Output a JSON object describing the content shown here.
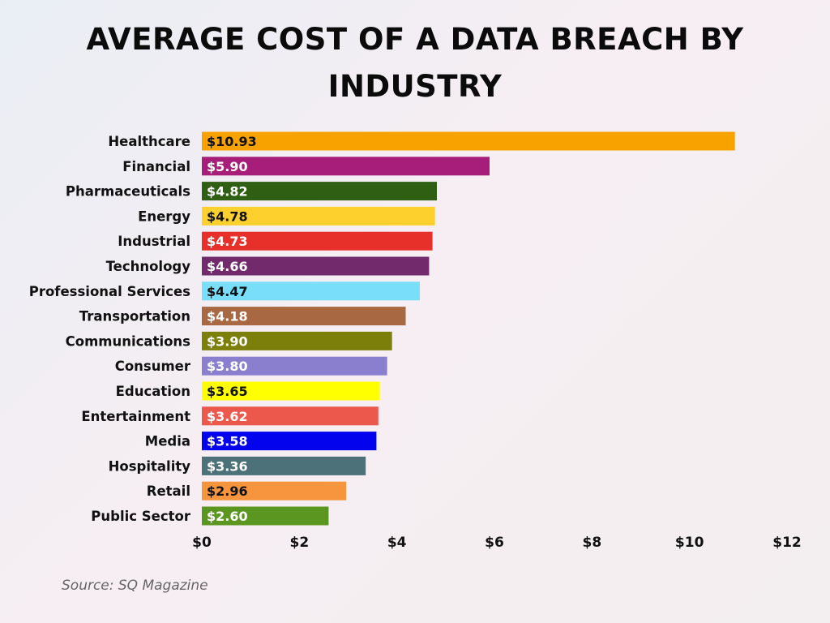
{
  "chart_data": {
    "type": "bar",
    "orientation": "horizontal",
    "title": "AVERAGE COST OF A DATA BREACH BY INDUSTRY",
    "categories": [
      "Healthcare",
      "Financial",
      "Pharmaceuticals",
      "Energy",
      "Industrial",
      "Technology",
      "Professional Services",
      "Transportation",
      "Communications",
      "Consumer",
      "Education",
      "Entertainment",
      "Media",
      "Hospitality",
      "Retail",
      "Public Sector"
    ],
    "values": [
      10.93,
      5.9,
      4.82,
      4.78,
      4.73,
      4.66,
      4.47,
      4.18,
      3.9,
      3.8,
      3.65,
      3.62,
      3.58,
      3.36,
      2.96,
      2.6
    ],
    "value_labels": [
      "$10.93",
      "$5.90",
      "$4.82",
      "$4.78",
      "$4.73",
      "$4.66",
      "$4.47",
      "$4.18",
      "$3.90",
      "$3.80",
      "$3.65",
      "$3.62",
      "$3.58",
      "$3.36",
      "$2.96",
      "$2.60"
    ],
    "colors": [
      "#f8a200",
      "#a61e7a",
      "#2f5f12",
      "#fdd02e",
      "#e8302a",
      "#722a6d",
      "#78def9",
      "#a86841",
      "#7d7f0b",
      "#8a7fcf",
      "#ffff00",
      "#ec584b",
      "#0303ed",
      "#4c7178",
      "#f6953d",
      "#5b9720"
    ],
    "label_colors": [
      "#111111",
      "#ffffff",
      "#ffffff",
      "#111111",
      "#ffffff",
      "#ffffff",
      "#111111",
      "#ffffff",
      "#ffffff",
      "#ffffff",
      "#111111",
      "#ffffff",
      "#ffffff",
      "#ffffff",
      "#111111",
      "#ffffff"
    ],
    "xlim": [
      0,
      12
    ],
    "xticks": [
      0,
      2,
      4,
      6,
      8,
      10,
      12
    ],
    "xtick_labels": [
      "$0",
      "$2",
      "$4",
      "$6",
      "$8",
      "$10",
      "$12"
    ],
    "grid": false,
    "legend": "none"
  },
  "source": "Source: SQ Magazine"
}
